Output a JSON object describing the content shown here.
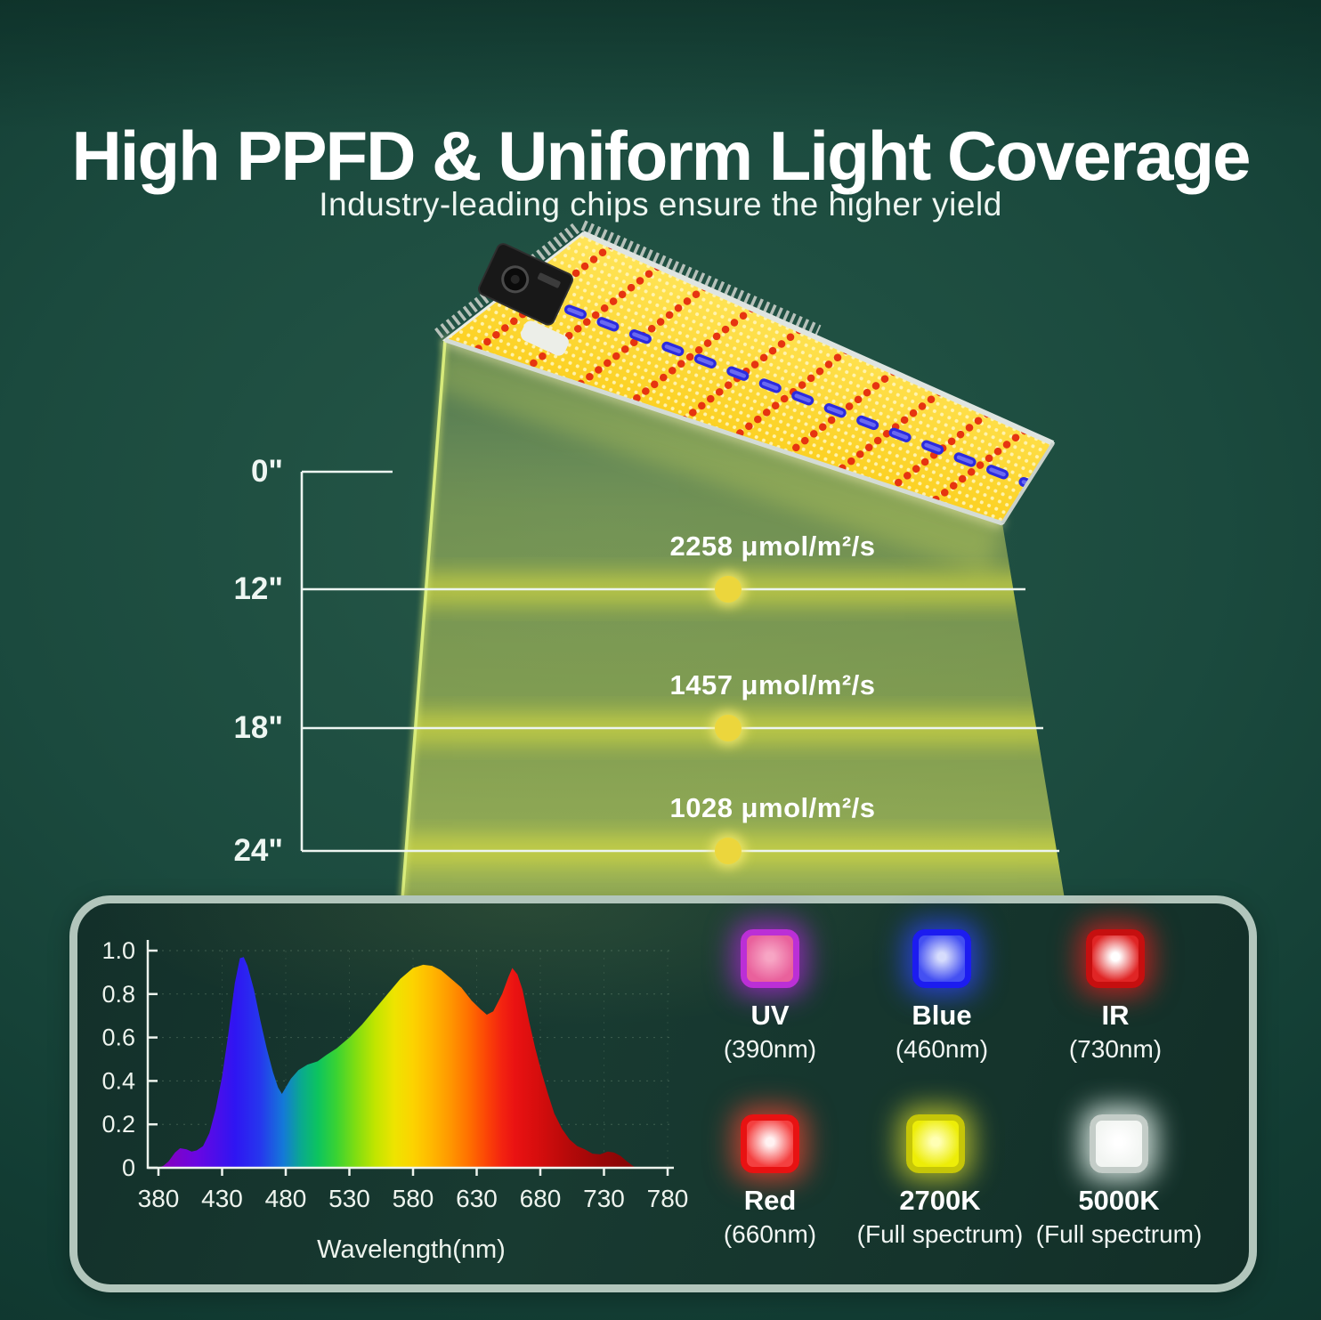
{
  "header": {
    "title": "High PPFD & Uniform Light Coverage",
    "subtitle": "Industry-leading chips ensure the higher yield"
  },
  "levels": [
    {
      "distance": "0\""
    },
    {
      "distance": "12\"",
      "ppfd": "2258 μmol/m²/s"
    },
    {
      "distance": "18\"",
      "ppfd": "1457 μmol/m²/s"
    },
    {
      "distance": "24\"",
      "ppfd": "1028 μmol/m²/s"
    }
  ],
  "colors": {
    "accent_yellow": "#ecd63c",
    "beam_yellow": "#e9e93c",
    "line_white": "#edf5f1",
    "panel_border": "#b2c6bc",
    "background_green": "#1b4a3e"
  },
  "chips": [
    {
      "name": "UV",
      "sub": "(390nm)",
      "colors": {
        "border": "#bb2fd6",
        "body": "#e9619c",
        "center": "#f7a5c4",
        "glow": "rgba(170,40,210,0.75)"
      }
    },
    {
      "name": "Blue",
      "sub": "(460nm)",
      "colors": {
        "border": "#1c1cf0",
        "body": "#4450f2",
        "center": "#d6dcfc",
        "glow": "rgba(45,70,250,0.75)"
      }
    },
    {
      "name": "IR",
      "sub": "(730nm)",
      "colors": {
        "border": "#c60f0f",
        "body": "#e02525",
        "center": "#ffffff",
        "glow": "rgba(235,30,30,0.7)"
      }
    },
    {
      "name": "Red",
      "sub": "(660nm)",
      "colors": {
        "border": "#e81212",
        "body": "#f44040",
        "center": "#fff2f2",
        "glow": "rgba(250,70,50,0.7)"
      }
    },
    {
      "name": "2700K",
      "sub": "(Full spectrum)",
      "colors": {
        "border": "#c6c608",
        "body": "#eded08",
        "center": "#ffffb4",
        "glow": "rgba(225,225,45,0.7)"
      }
    },
    {
      "name": "5000K",
      "sub": "(Full spectrum)",
      "colors": {
        "border": "#c4cdc8",
        "body": "#f2f5f2",
        "center": "#ffffff",
        "glow": "rgba(235,248,242,0.85)"
      }
    }
  ],
  "chart_data": {
    "type": "area",
    "title": "LED light spectrum",
    "xlabel": "Wavelength(nm)",
    "ylabel": "",
    "xlim": [
      380,
      780
    ],
    "ylim": [
      0,
      1
    ],
    "grid": true,
    "x_ticks": [
      380,
      430,
      480,
      530,
      580,
      630,
      680,
      730,
      780
    ],
    "y_tick_labels": [
      "0",
      "0.2",
      "0.4",
      "0.6",
      "0.8",
      "1.0"
    ],
    "y_ticks": [
      0,
      0.2,
      0.4,
      0.6,
      0.8,
      1.0
    ],
    "points": [
      [
        380,
        0
      ],
      [
        384,
        0.01
      ],
      [
        388,
        0.03
      ],
      [
        393,
        0.07
      ],
      [
        397,
        0.09
      ],
      [
        402,
        0.085
      ],
      [
        406,
        0.075
      ],
      [
        410,
        0.08
      ],
      [
        415,
        0.1
      ],
      [
        420,
        0.16
      ],
      [
        425,
        0.27
      ],
      [
        430,
        0.42
      ],
      [
        435,
        0.62
      ],
      [
        440,
        0.85
      ],
      [
        444,
        0.965
      ],
      [
        447,
        0.97
      ],
      [
        450,
        0.93
      ],
      [
        455,
        0.82
      ],
      [
        460,
        0.68
      ],
      [
        465,
        0.55
      ],
      [
        470,
        0.44
      ],
      [
        474,
        0.37
      ],
      [
        477,
        0.34
      ],
      [
        480,
        0.37
      ],
      [
        484,
        0.41
      ],
      [
        490,
        0.45
      ],
      [
        497,
        0.475
      ],
      [
        505,
        0.49
      ],
      [
        512,
        0.52
      ],
      [
        520,
        0.55
      ],
      [
        530,
        0.6
      ],
      [
        540,
        0.66
      ],
      [
        550,
        0.73
      ],
      [
        560,
        0.8
      ],
      [
        570,
        0.87
      ],
      [
        580,
        0.92
      ],
      [
        588,
        0.935
      ],
      [
        595,
        0.93
      ],
      [
        602,
        0.91
      ],
      [
        610,
        0.87
      ],
      [
        618,
        0.83
      ],
      [
        626,
        0.77
      ],
      [
        633,
        0.73
      ],
      [
        638,
        0.705
      ],
      [
        643,
        0.72
      ],
      [
        650,
        0.8
      ],
      [
        655,
        0.88
      ],
      [
        658,
        0.92
      ],
      [
        662,
        0.89
      ],
      [
        666,
        0.82
      ],
      [
        671,
        0.68
      ],
      [
        676,
        0.55
      ],
      [
        681,
        0.44
      ],
      [
        686,
        0.34
      ],
      [
        691,
        0.25
      ],
      [
        697,
        0.18
      ],
      [
        703,
        0.13
      ],
      [
        709,
        0.1
      ],
      [
        715,
        0.085
      ],
      [
        721,
        0.065
      ],
      [
        727,
        0.062
      ],
      [
        733,
        0.075
      ],
      [
        738,
        0.07
      ],
      [
        743,
        0.055
      ],
      [
        748,
        0.03
      ],
      [
        752,
        0.012
      ],
      [
        755,
        0
      ]
    ],
    "gradient_stops": [
      [
        380,
        "#8a00b8"
      ],
      [
        410,
        "#6a06e2"
      ],
      [
        440,
        "#2f15f2"
      ],
      [
        460,
        "#2637ee"
      ],
      [
        478,
        "#1479d8"
      ],
      [
        492,
        "#0aa98f"
      ],
      [
        505,
        "#0cc45f"
      ],
      [
        520,
        "#3ad332"
      ],
      [
        535,
        "#7fdd12"
      ],
      [
        550,
        "#c0e500"
      ],
      [
        565,
        "#eee400"
      ],
      [
        580,
        "#fcd300"
      ],
      [
        595,
        "#ffb700"
      ],
      [
        610,
        "#ff9500"
      ],
      [
        625,
        "#ff6d00"
      ],
      [
        638,
        "#fb4406"
      ],
      [
        650,
        "#f32310"
      ],
      [
        660,
        "#ea1212"
      ],
      [
        680,
        "#d40d0d"
      ],
      [
        705,
        "#b20909"
      ],
      [
        730,
        "#970707"
      ],
      [
        755,
        "#830606"
      ]
    ]
  }
}
